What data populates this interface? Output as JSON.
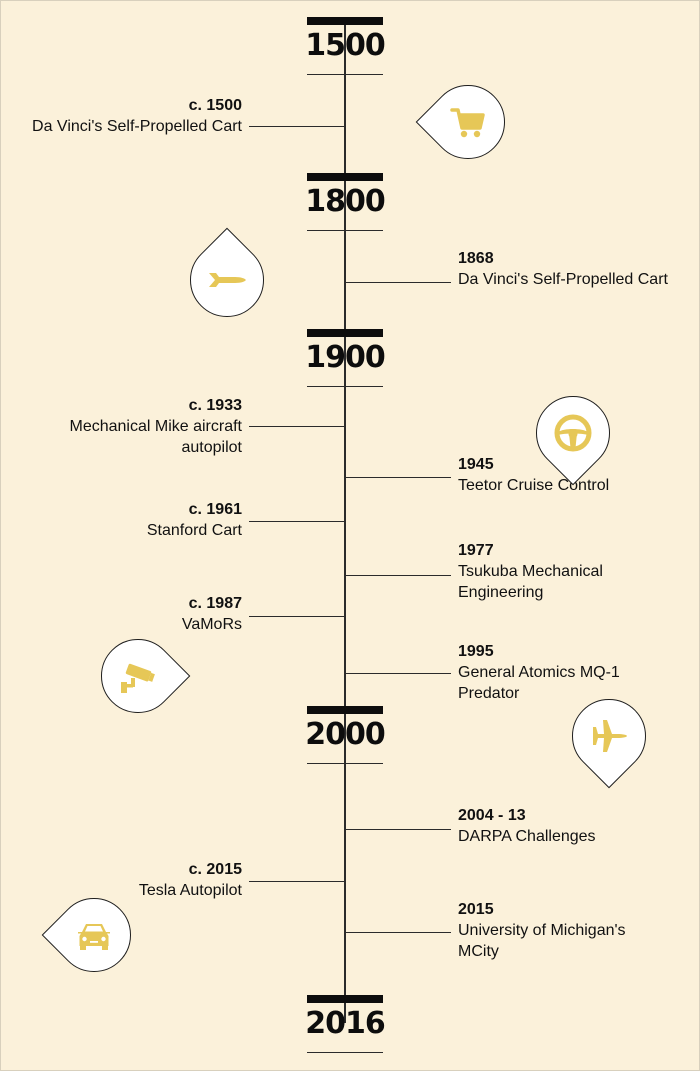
{
  "timeline": {
    "eras": [
      {
        "label": "1500"
      },
      {
        "label": "1800"
      },
      {
        "label": "1900"
      },
      {
        "label": "2000"
      },
      {
        "label": "2016"
      }
    ],
    "events": [
      {
        "year": "c. 1500",
        "title": "Da Vinci's Self-Propelled Cart",
        "side": "left"
      },
      {
        "year": "1868",
        "title": "Da Vinci's Self-Propelled Cart",
        "side": "right"
      },
      {
        "year": "c. 1933",
        "title": "Mechanical Mike aircraft autopilot",
        "side": "left"
      },
      {
        "year": "1945",
        "title": "Teetor Cruise Control",
        "side": "right"
      },
      {
        "year": "c. 1961",
        "title": "Stanford Cart",
        "side": "left"
      },
      {
        "year": "1977",
        "title": "Tsukuba Mechanical Engineering",
        "side": "right"
      },
      {
        "year": "c. 1987",
        "title": "VaMoRs",
        "side": "left"
      },
      {
        "year": "1995",
        "title": "General Atomics MQ-1 Predator",
        "side": "right"
      },
      {
        "year": "2004 - 13",
        "title": "DARPA Challenges",
        "side": "right"
      },
      {
        "year": "c. 2015",
        "title": "Tesla Autopilot",
        "side": "left"
      },
      {
        "year": "2015",
        "title": "University of Michigan's MCity",
        "side": "right"
      }
    ],
    "icons": [
      {
        "name": "shopping-cart-icon"
      },
      {
        "name": "torpedo-icon"
      },
      {
        "name": "steering-wheel-icon"
      },
      {
        "name": "security-camera-icon"
      },
      {
        "name": "airplane-icon"
      },
      {
        "name": "car-icon"
      }
    ],
    "colors": {
      "background": "#fbf1da",
      "accent": "#e6c757",
      "ink": "#0d0d0d"
    }
  }
}
